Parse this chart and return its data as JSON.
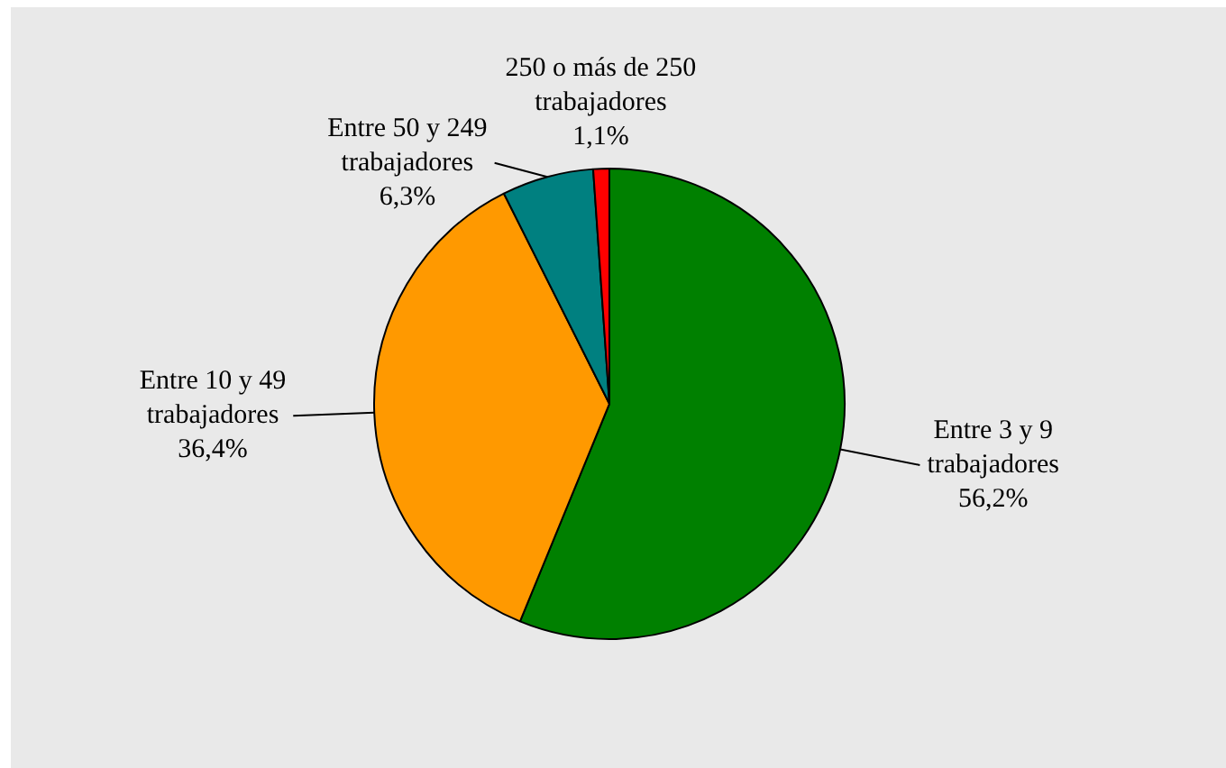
{
  "chart_data": {
    "type": "pie",
    "categories": [
      "Entre 3 y 9 trabajadores",
      "Entre 10 y 49 trabajadores",
      "Entre 50 y 249 trabajadores",
      "250 o más de 250 trabajadores"
    ],
    "values": [
      56.2,
      36.4,
      6.3,
      1.1
    ],
    "colors": [
      "#008000",
      "#ff9900",
      "#008080",
      "#ff0000"
    ],
    "value_labels": [
      "56,2%",
      "36,4%",
      "6,3%",
      "1,1%"
    ]
  }
}
